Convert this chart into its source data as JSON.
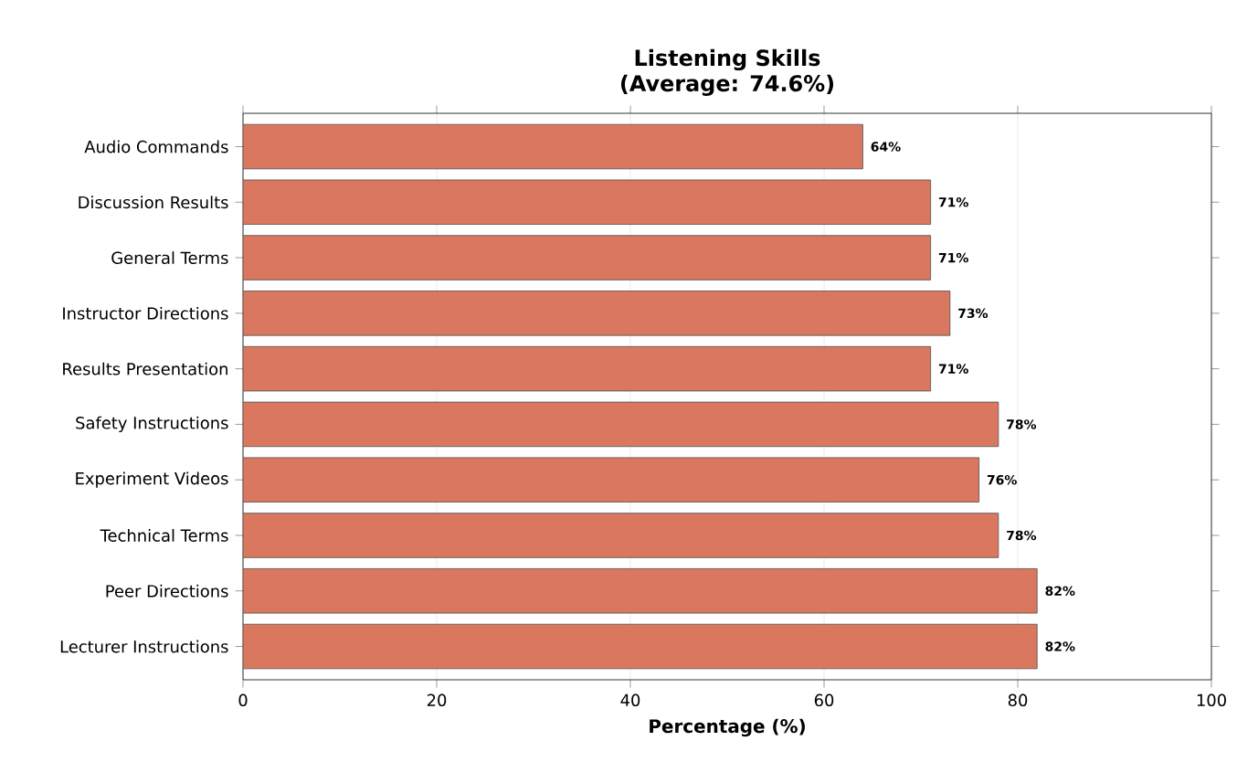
{
  "chart_data": {
    "type": "bar",
    "orientation": "horizontal",
    "title": "Listening Skills",
    "subtitle": "(Average: 74.6%)",
    "xlabel": "Percentage (%)",
    "categories": [
      "Audio Commands",
      "Discussion Results",
      "General Terms",
      "Instructor Directions",
      "Results Presentation",
      "Safety Instructions",
      "Experiment Videos",
      "Technical Terms",
      "Peer Directions",
      "Lecturer Instructions"
    ],
    "values": [
      64,
      71,
      71,
      73,
      71,
      78,
      76,
      78,
      82,
      82
    ],
    "value_labels": [
      "64%",
      "71%",
      "71%",
      "73%",
      "71%",
      "78%",
      "76%",
      "78%",
      "82%",
      "82%"
    ],
    "color": "#d9785f",
    "xlim": [
      0,
      100
    ],
    "xticks": [
      0,
      20,
      40,
      60,
      80,
      100
    ],
    "grid": "x"
  }
}
